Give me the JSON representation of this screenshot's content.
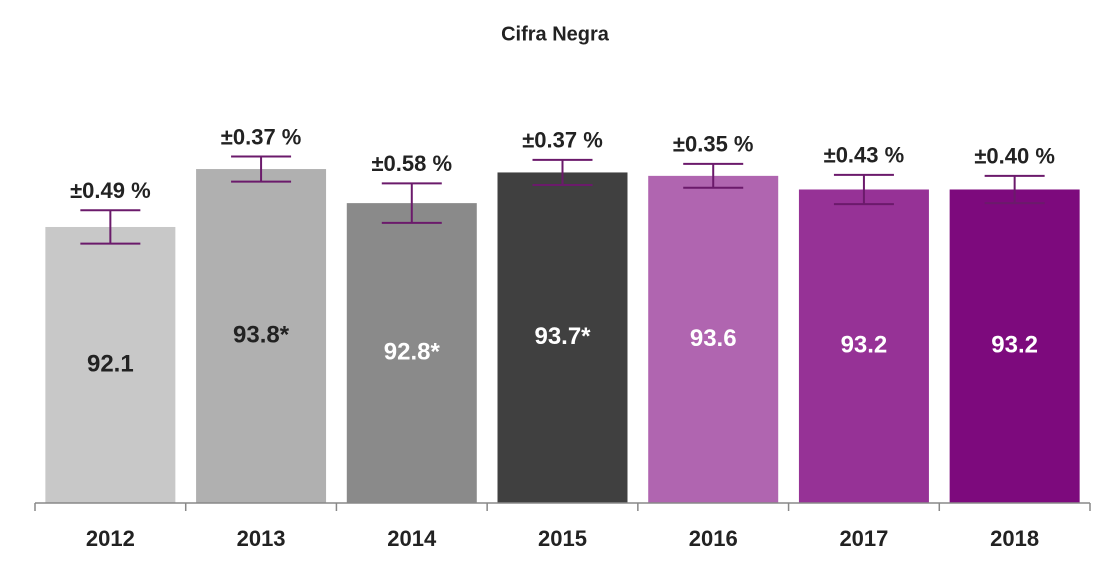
{
  "chart_data": {
    "type": "bar",
    "title": "Cifra Negra",
    "categories": [
      "2012",
      "2013",
      "2014",
      "2015",
      "2016",
      "2017",
      "2018"
    ],
    "values": [
      92.1,
      93.8,
      92.8,
      93.7,
      93.6,
      93.2,
      93.2
    ],
    "value_labels": [
      "92.1",
      "93.8*",
      "92.8*",
      "93.7*",
      "93.6",
      "93.2",
      "93.2"
    ],
    "errors": [
      0.49,
      0.37,
      0.58,
      0.37,
      0.35,
      0.43,
      0.4
    ],
    "error_labels": [
      "±0.49 %",
      "±0.37 %",
      "±0.58 %",
      "±0.37 %",
      "±0.35 %",
      "±0.43 %",
      "±0.40 %"
    ],
    "colors": [
      "#c8c8c8",
      "#b0b0b0",
      "#8a8a8a",
      "#404040",
      "#b065b0",
      "#963296",
      "#7d0a7d"
    ],
    "label_colors": [
      "#222222",
      "#222222",
      "#ffffff",
      "#ffffff",
      "#ffffff",
      "#ffffff",
      "#ffffff"
    ],
    "error_color": "#6b1a6b",
    "ylim": [
      84,
      97
    ]
  }
}
